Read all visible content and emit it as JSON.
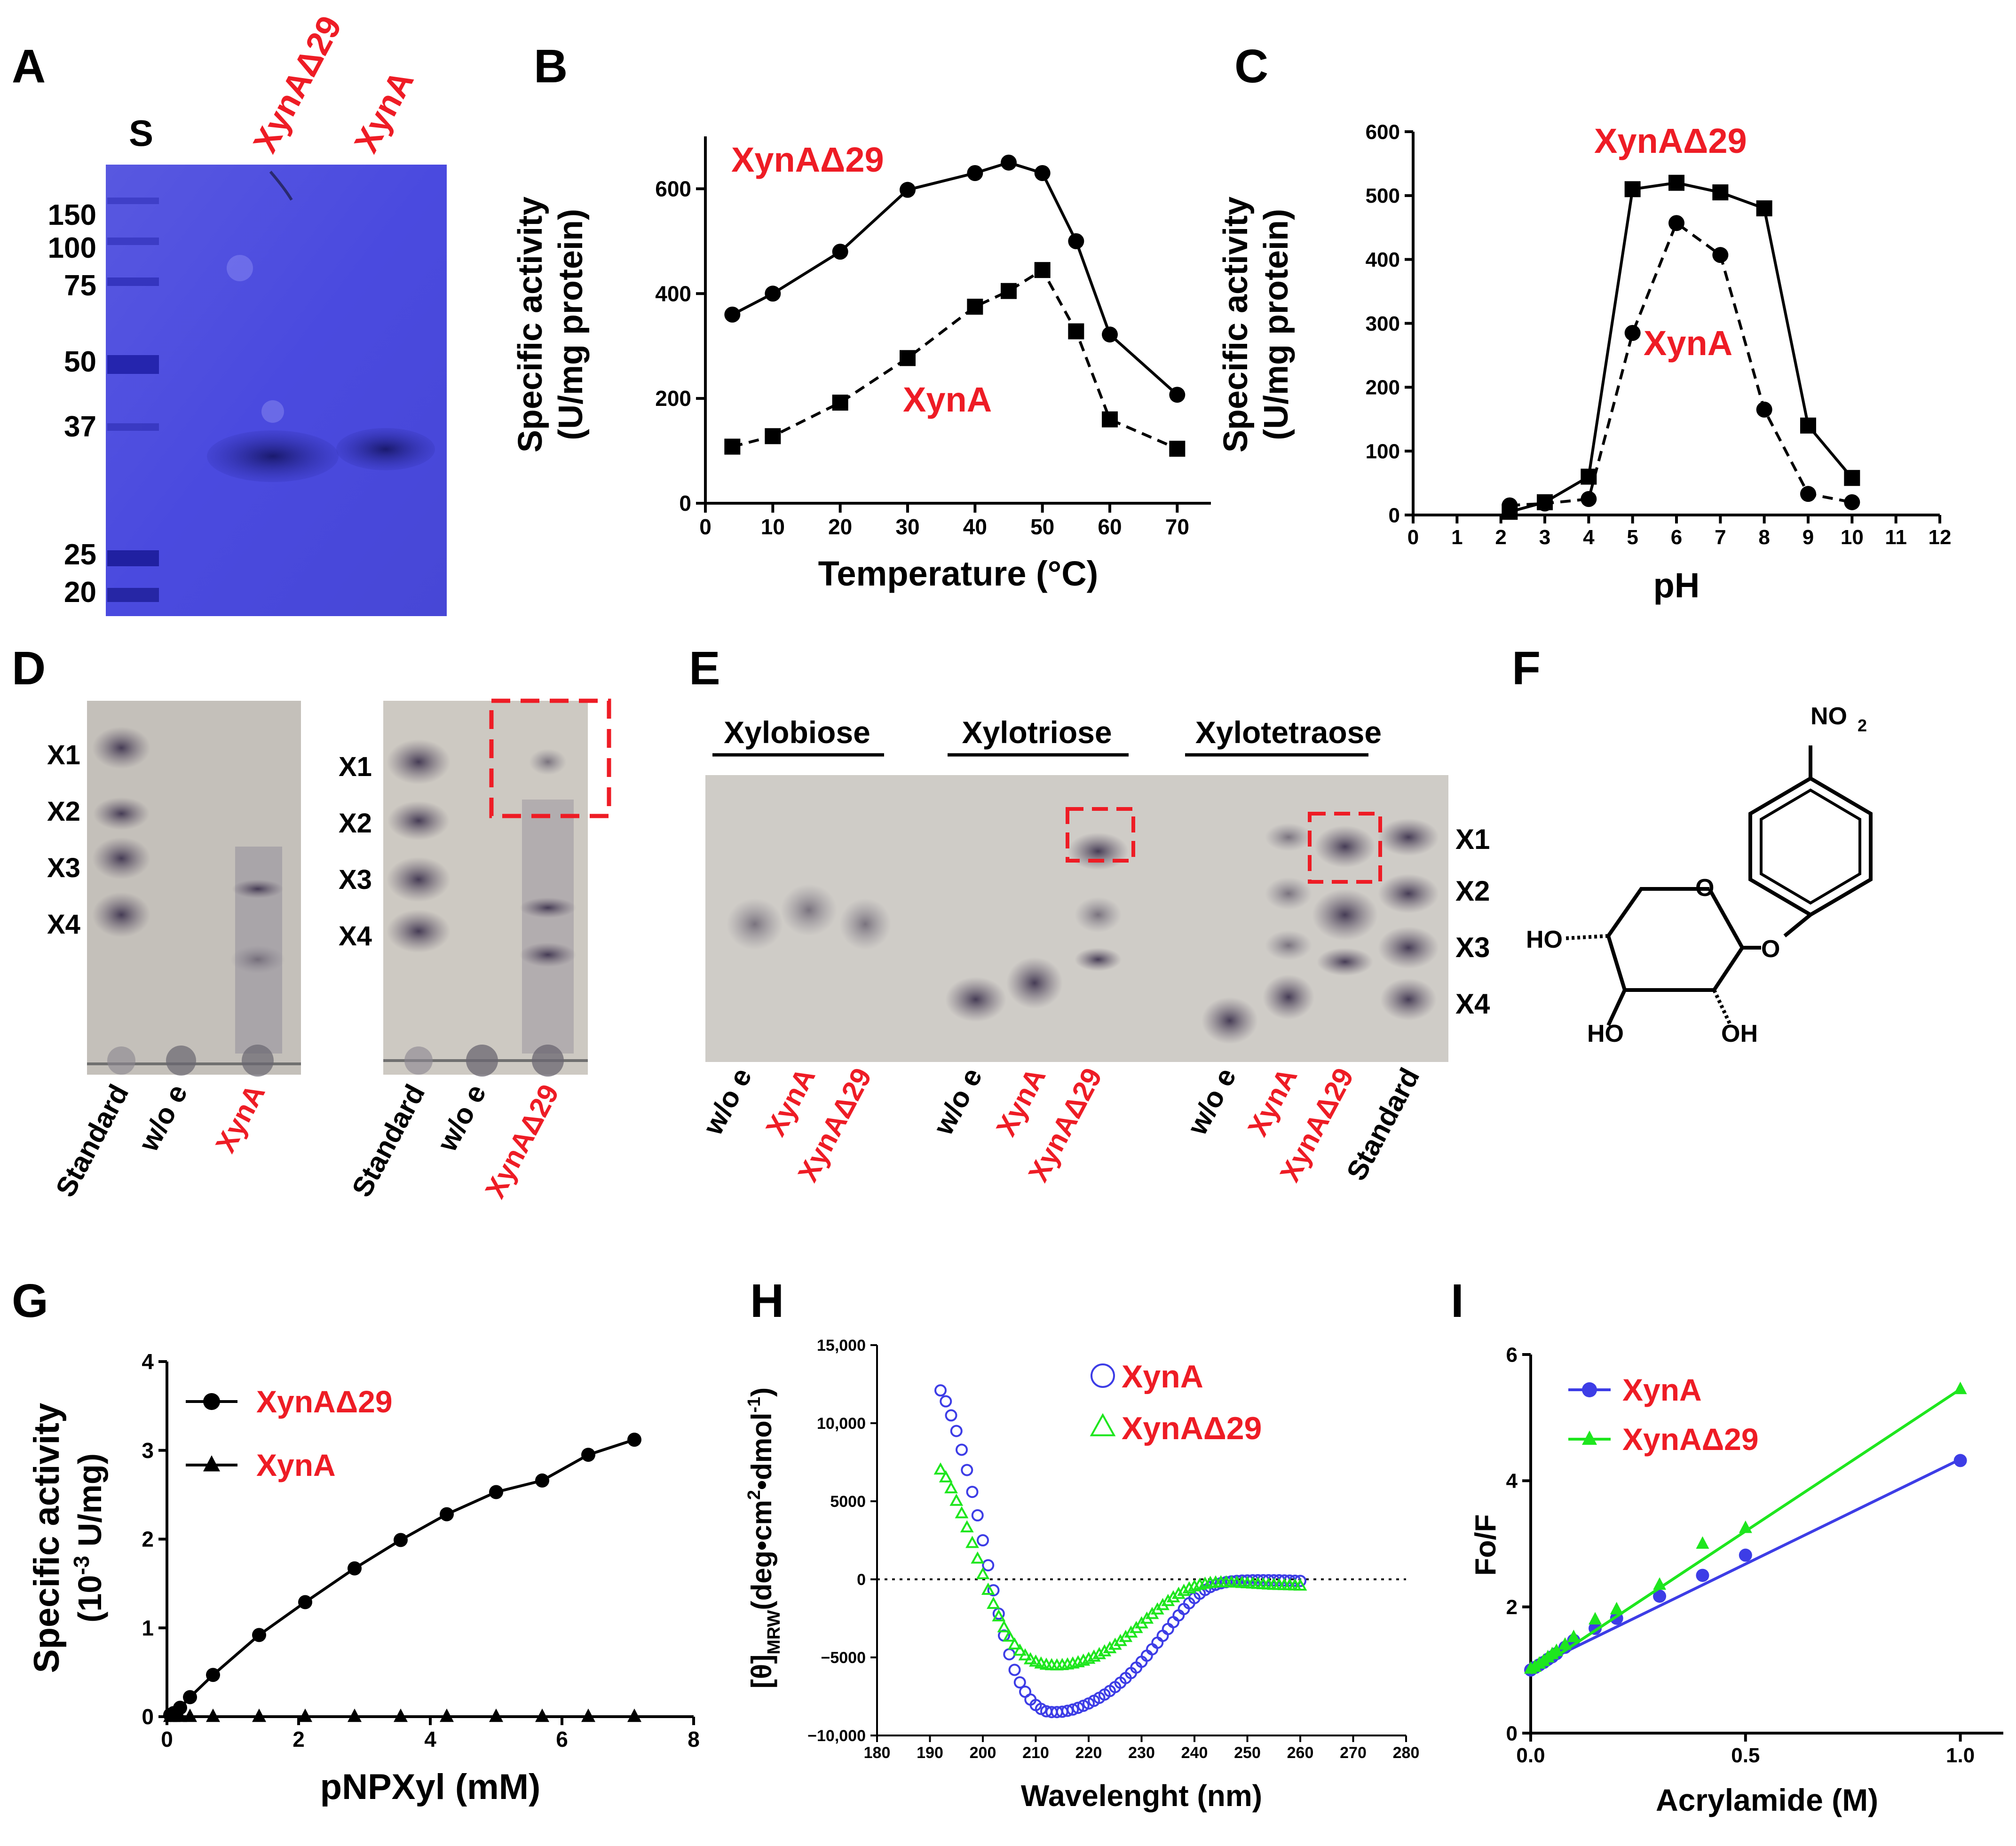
{
  "panels": {
    "A": {
      "letter": "A",
      "standard_label": "S",
      "lane_labels": [
        "XynAΔ29",
        "XynA"
      ],
      "marker_kda": [
        "150",
        "100",
        "75",
        "50",
        "37",
        "25",
        "20"
      ]
    },
    "D": {
      "letter": "D",
      "band_labels": [
        "X1",
        "X2",
        "X3",
        "X4"
      ],
      "left_lanes": [
        "Standard",
        "w/o e",
        "XynA"
      ],
      "right_lanes": [
        "Standard",
        "w/o e",
        "XynAΔ29"
      ]
    },
    "E": {
      "letter": "E",
      "groups": [
        "Xylobiose",
        "Xylotriose",
        "Xylotetraose"
      ],
      "lanes": [
        [
          "w/o e",
          "XynA",
          "XynAΔ29"
        ],
        [
          "w/o e",
          "XynA",
          "XynAΔ29"
        ],
        [
          "w/o e",
          "XynA",
          "XynAΔ29",
          "Standard"
        ]
      ],
      "band_labels": [
        "X1",
        "X2",
        "X3",
        "X4"
      ]
    },
    "F": {
      "letter": "F",
      "compound": "pNPXyl",
      "atoms": {
        "no2": "NO",
        "no2_sub": "2",
        "o_ring": "O",
        "o_link": "O",
        "ho_left": "HO",
        "ho_bottom": "HO",
        "oh_right": "OH"
      }
    }
  },
  "colors": {
    "accent_red": "#ee1c25",
    "blue": "#3d3de6",
    "green": "#1ee61e",
    "black": "#000000"
  },
  "chart_data": [
    {
      "panel": "B",
      "type": "line",
      "xlabel": "Temperature (°C)",
      "ylabel": [
        "Specific activity",
        "(U/mg protein)"
      ],
      "xlim": [
        0,
        75
      ],
      "ylim": [
        0,
        700
      ],
      "xticks": [
        0,
        10,
        20,
        30,
        40,
        50,
        60,
        70
      ],
      "yticks": [
        0,
        200,
        400,
        600
      ],
      "series": [
        {
          "name": "XynAΔ29",
          "marker": "circle",
          "line": "solid",
          "x": [
            4,
            10,
            20,
            30,
            40,
            45,
            50,
            55,
            60,
            70
          ],
          "y": [
            360,
            400,
            480,
            598,
            630,
            650,
            630,
            500,
            322,
            207
          ]
        },
        {
          "name": "XynA",
          "marker": "square",
          "line": "dashed",
          "x": [
            4,
            10,
            20,
            30,
            40,
            45,
            50,
            55,
            60,
            70
          ],
          "y": [
            108,
            128,
            192,
            277,
            375,
            405,
            445,
            328,
            160,
            104
          ]
        }
      ]
    },
    {
      "panel": "C",
      "type": "line",
      "xlabel": "pH",
      "ylabel": [
        "Specific activity",
        "(U/mg protein)"
      ],
      "xlim": [
        0,
        12
      ],
      "ylim": [
        0,
        600
      ],
      "xticks": [
        0,
        1,
        2,
        3,
        4,
        5,
        6,
        7,
        8,
        9,
        10,
        11,
        12
      ],
      "yticks": [
        0,
        100,
        200,
        300,
        400,
        500,
        600
      ],
      "series": [
        {
          "name": "XynAΔ29",
          "marker": "square",
          "line": "solid",
          "x": [
            2.2,
            3,
            4,
            5,
            6,
            7,
            8,
            9,
            10
          ],
          "y": [
            5,
            20,
            60,
            510,
            520,
            505,
            480,
            140,
            58
          ]
        },
        {
          "name": "XynA",
          "marker": "circle",
          "line": "dashed",
          "x": [
            2.2,
            3,
            4,
            5,
            6,
            7,
            8,
            9,
            10
          ],
          "y": [
            15,
            18,
            25,
            285,
            457,
            407,
            165,
            33,
            20
          ]
        }
      ]
    },
    {
      "panel": "G",
      "type": "line",
      "xlabel": "pNPXyl (mM)",
      "ylabel": [
        "Specific activity",
        "(10",
        "-3",
        " U/mg)"
      ],
      "xlim": [
        0,
        8
      ],
      "ylim": [
        0,
        4
      ],
      "xticks": [
        0,
        2,
        4,
        6,
        8
      ],
      "yticks": [
        0,
        1,
        2,
        3,
        4
      ],
      "series": [
        {
          "name": "XynAΔ29",
          "marker": "circle",
          "x": [
            0.05,
            0.1,
            0.2,
            0.35,
            0.7,
            1.4,
            2.1,
            2.85,
            3.55,
            4.25,
            5.0,
            5.7,
            6.4,
            7.1
          ],
          "y": [
            0.02,
            0.04,
            0.1,
            0.22,
            0.47,
            0.92,
            1.29,
            1.67,
            1.99,
            2.28,
            2.53,
            2.66,
            2.95,
            3.12
          ]
        },
        {
          "name": "XynA",
          "marker": "triangle",
          "x": [
            0.05,
            0.1,
            0.2,
            0.35,
            0.7,
            1.4,
            2.1,
            2.85,
            3.55,
            4.25,
            5.0,
            5.7,
            6.4,
            7.1
          ],
          "y": [
            0,
            0,
            0,
            0,
            0,
            0,
            0,
            0,
            0,
            0,
            0,
            0,
            0,
            0
          ]
        }
      ]
    },
    {
      "panel": "H",
      "type": "scatter",
      "xlabel": "Wavelenght (nm)",
      "ylabel": [
        "[θ]",
        "MRW",
        "(deg•cm",
        "2",
        "•dmol",
        "-1",
        ")"
      ],
      "xlim": [
        180,
        280
      ],
      "ylim": [
        -10000,
        15000
      ],
      "xticks": [
        180,
        190,
        200,
        210,
        220,
        230,
        240,
        250,
        260,
        270,
        280
      ],
      "yticks": [
        -10000,
        -5000,
        0,
        5000,
        10000,
        15000
      ],
      "ytick_labels": [
        "−10,000",
        "−5000",
        "0",
        "5000",
        "10,000",
        "15,000"
      ],
      "series": [
        {
          "name": "XynA",
          "marker": "open-circle",
          "x": [
            192,
            193,
            194,
            195,
            196,
            197,
            198,
            199,
            200,
            201,
            202,
            203,
            204,
            205,
            206,
            207,
            208,
            209,
            210,
            211,
            212,
            213,
            214,
            215,
            216,
            217,
            218,
            219,
            220,
            221,
            222,
            223,
            224,
            225,
            226,
            227,
            228,
            229,
            230,
            231,
            232,
            233,
            234,
            235,
            236,
            237,
            238,
            239,
            240,
            241,
            242,
            243,
            244,
            245,
            246,
            247,
            248,
            249,
            250,
            251,
            252,
            253,
            254,
            255,
            256,
            257,
            258,
            259,
            260
          ],
          "y": [
            12100,
            11400,
            10500,
            9500,
            8300,
            7000,
            5600,
            4100,
            2500,
            900,
            -700,
            -2200,
            -3600,
            -4800,
            -5800,
            -6600,
            -7200,
            -7700,
            -8050,
            -8300,
            -8450,
            -8500,
            -8500,
            -8480,
            -8420,
            -8340,
            -8230,
            -8100,
            -7950,
            -7780,
            -7590,
            -7380,
            -7150,
            -6900,
            -6620,
            -6320,
            -6000,
            -5650,
            -5280,
            -4890,
            -4480,
            -4060,
            -3620,
            -3180,
            -2740,
            -2310,
            -1900,
            -1530,
            -1200,
            -920,
            -680,
            -490,
            -350,
            -250,
            -180,
            -130,
            -100,
            -80,
            -70,
            -60,
            -55,
            -55,
            -55,
            -60,
            -60,
            -70,
            -80,
            -90,
            -100
          ]
        },
        {
          "name": "XynAΔ29",
          "marker": "open-triangle",
          "x": [
            192,
            193,
            194,
            195,
            196,
            197,
            198,
            199,
            200,
            201,
            202,
            203,
            204,
            205,
            206,
            207,
            208,
            209,
            210,
            211,
            212,
            213,
            214,
            215,
            216,
            217,
            218,
            219,
            220,
            221,
            222,
            223,
            224,
            225,
            226,
            227,
            228,
            229,
            230,
            231,
            232,
            233,
            234,
            235,
            236,
            237,
            238,
            239,
            240,
            241,
            242,
            243,
            244,
            245,
            246,
            247,
            248,
            249,
            250,
            251,
            252,
            253,
            254,
            255,
            256,
            257,
            258,
            259,
            260
          ],
          "y": [
            7000,
            6500,
            5800,
            5000,
            4200,
            3300,
            2300,
            1300,
            300,
            -700,
            -1600,
            -2400,
            -3100,
            -3700,
            -4200,
            -4600,
            -4900,
            -5150,
            -5300,
            -5420,
            -5500,
            -5530,
            -5540,
            -5520,
            -5480,
            -5420,
            -5340,
            -5240,
            -5120,
            -4980,
            -4820,
            -4640,
            -4440,
            -4220,
            -3980,
            -3720,
            -3440,
            -3150,
            -2850,
            -2550,
            -2250,
            -1960,
            -1680,
            -1420,
            -1180,
            -960,
            -770,
            -610,
            -480,
            -380,
            -310,
            -260,
            -230,
            -220,
            -220,
            -230,
            -240,
            -260,
            -280,
            -300,
            -320,
            -340,
            -360,
            -380,
            -390,
            -400,
            -410,
            -420,
            -430
          ]
        }
      ]
    },
    {
      "panel": "I",
      "type": "scatter",
      "xlabel": "Acrylamide (M)",
      "ylabel": [
        "Fo/F"
      ],
      "xlim": [
        0,
        1.1
      ],
      "ylim": [
        0,
        6
      ],
      "xticks": [
        0.0,
        0.5,
        1.0
      ],
      "xtick_labels": [
        "0.0",
        "0.5",
        "1.0"
      ],
      "yticks": [
        0,
        2,
        4,
        6
      ],
      "series": [
        {
          "name": "XynA",
          "marker": "circle",
          "fit": [
            1.02,
            3.32
          ],
          "x": [
            0.0,
            0.01,
            0.02,
            0.03,
            0.04,
            0.05,
            0.06,
            0.08,
            0.1,
            0.15,
            0.2,
            0.3,
            0.4,
            0.5,
            1.0
          ],
          "y": [
            1.0,
            1.04,
            1.08,
            1.12,
            1.17,
            1.21,
            1.26,
            1.36,
            1.47,
            1.66,
            1.82,
            2.17,
            2.5,
            2.82,
            4.32
          ]
        },
        {
          "name": "XynAΔ29",
          "marker": "triangle",
          "fit": [
            0.95,
            4.5
          ],
          "x": [
            0.0,
            0.01,
            0.02,
            0.03,
            0.04,
            0.05,
            0.06,
            0.08,
            0.1,
            0.15,
            0.2,
            0.3,
            0.4,
            0.5,
            1.0
          ],
          "y": [
            1.02,
            1.05,
            1.1,
            1.14,
            1.2,
            1.25,
            1.3,
            1.4,
            1.52,
            1.8,
            1.96,
            2.35,
            3.0,
            3.25,
            5.45
          ]
        }
      ]
    }
  ]
}
